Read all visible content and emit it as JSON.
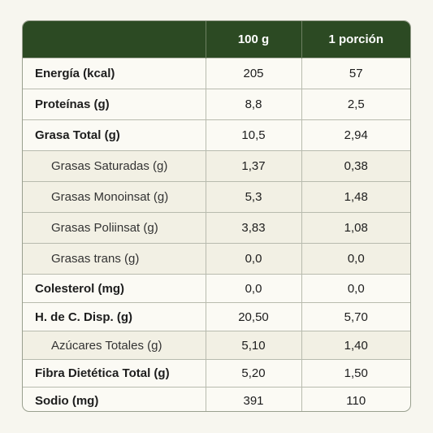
{
  "table": {
    "columns": [
      "100 g",
      "1 porción"
    ],
    "rows": [
      {
        "label": "Energía (kcal)",
        "cells": [
          "205",
          "57"
        ],
        "indent": false
      },
      {
        "label": "Proteínas (g)",
        "cells": [
          "8,8",
          "2,5"
        ],
        "indent": false
      },
      {
        "label": "Grasa Total (g)",
        "cells": [
          "10,5",
          "2,94"
        ],
        "indent": false
      },
      {
        "label": "Grasas Saturadas (g)",
        "cells": [
          "1,37",
          "0,38"
        ],
        "indent": true
      },
      {
        "label": "Grasas Monoinsat (g)",
        "cells": [
          "5,3",
          "1,48"
        ],
        "indent": true
      },
      {
        "label": "Grasas Poliinsat (g)",
        "cells": [
          "3,83",
          "1,08"
        ],
        "indent": true
      },
      {
        "label": "Grasas trans (g)",
        "cells": [
          "0,0",
          "0,0"
        ],
        "indent": true
      },
      {
        "label": "Colesterol (mg)",
        "cells": [
          "0,0",
          "0,0"
        ],
        "indent": false
      },
      {
        "label": "H. de C. Disp. (g)",
        "cells": [
          "20,50",
          "5,70"
        ],
        "indent": false
      },
      {
        "label": "Azúcares Totales (g)",
        "cells": [
          "5,10",
          "1,40"
        ],
        "indent": true
      },
      {
        "label": "Fibra Dietética Total (g)",
        "cells": [
          "5,20",
          "1,50"
        ],
        "indent": false
      },
      {
        "label": "Sodio (mg)",
        "cells": [
          "391",
          "110"
        ],
        "indent": false
      }
    ]
  }
}
